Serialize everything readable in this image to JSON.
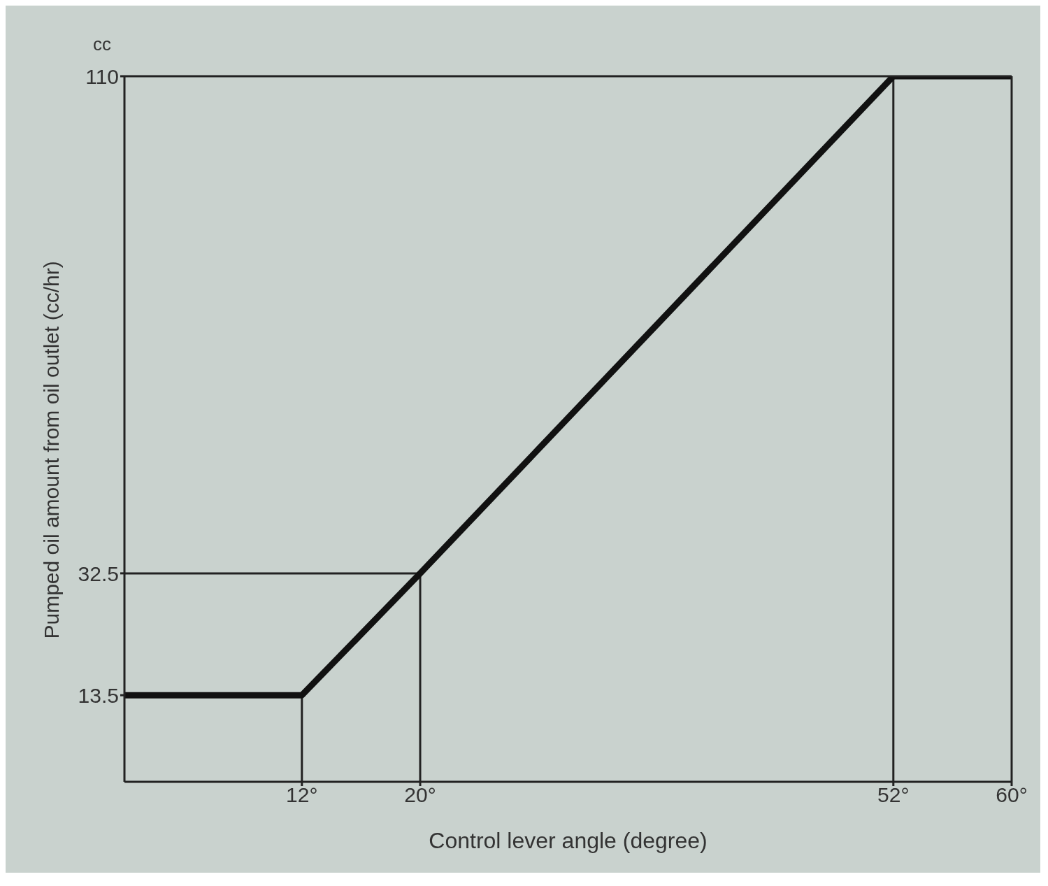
{
  "chart_data": {
    "type": "line",
    "xlabel": "Control lever angle  (degree)",
    "ylabel": "Pumped oil amount from oil outlet (cc/hr)",
    "annotations": [
      "cc"
    ],
    "x": [
      0,
      12,
      20,
      52,
      60
    ],
    "series": [
      {
        "color": "#111111",
        "values": [
          13.5,
          13.5,
          32.5,
          110,
          110
        ]
      }
    ],
    "xlim": [
      0,
      60
    ],
    "xticks": [
      {
        "value": 12,
        "label": "12°"
      },
      {
        "value": 20,
        "label": "20°"
      },
      {
        "value": 52,
        "label": "52°"
      },
      {
        "value": 60,
        "label": "60°"
      }
    ],
    "ylim": [
      0,
      110
    ],
    "yticks": [
      13.5,
      32.5,
      110
    ],
    "ref_lines": [
      {
        "axis": "x",
        "value": 12
      },
      {
        "axis": "x",
        "value": 20
      },
      {
        "axis": "x",
        "value": 52
      },
      {
        "axis": "y",
        "value": 32.5
      }
    ],
    "grid": false,
    "legend": false,
    "marker": "none",
    "line_style": "solid"
  }
}
